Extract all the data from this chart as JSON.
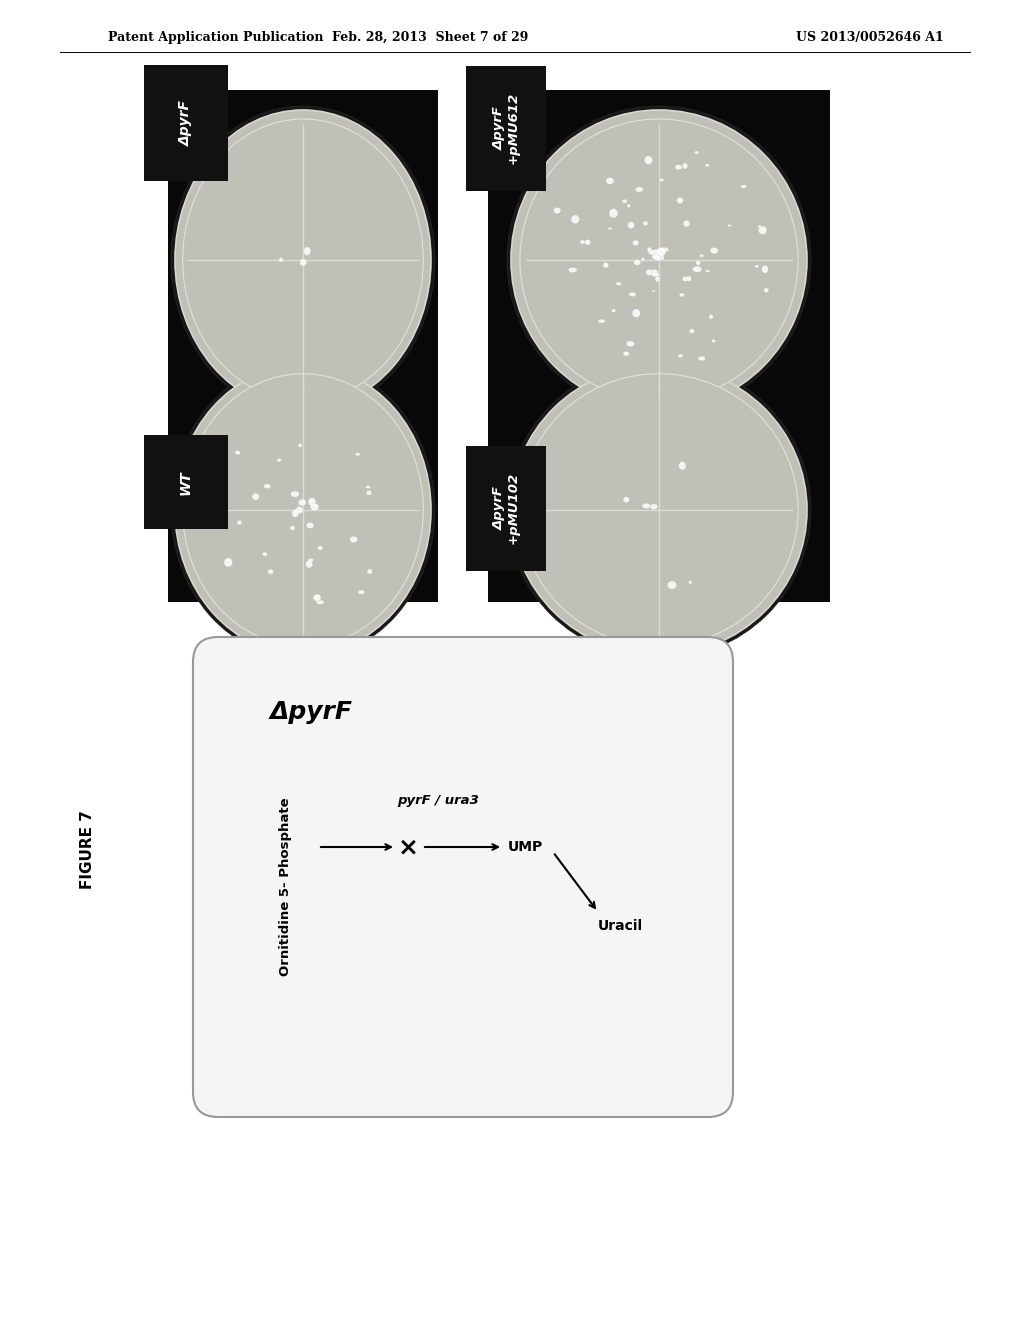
{
  "header_left": "Patent Application Publication",
  "header_center": "Feb. 28, 2013  Sheet 7 of 29",
  "header_right": "US 2013/0052646 A1",
  "figure_label": "FIGURE 7",
  "panel_labels": {
    "top_left": "ΔpyrF",
    "top_right": "ΔpyrF\n+pMU612",
    "bottom_left": "WT",
    "bottom_right": "ΔpyrF\n+pMU102"
  },
  "diagram_title": "ΔpyrF",
  "diagram_line1": "Ornitidine 5- Phosphate",
  "diagram_pyrF": "pyrF / ura3",
  "diagram_ump": "UMP",
  "diagram_uracil": "Uracil",
  "background_color": "#ffffff",
  "photo_bg": "#0a0a0a",
  "label_bg": "#111111",
  "label_fg": "#ffffff",
  "diagram_bg": "#f5f5f5",
  "diagram_border": "#999999",
  "agar_color": "#c5c5bc",
  "agar_rim": "#b8b8b0"
}
